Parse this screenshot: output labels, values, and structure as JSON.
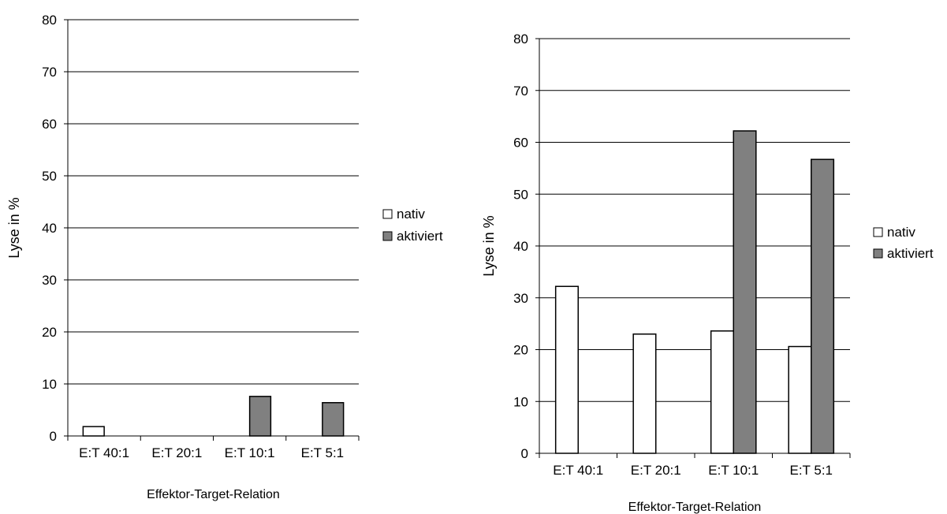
{
  "chart_data": [
    {
      "type": "bar",
      "title": "",
      "xlabel": "Effektor-Target-Relation",
      "ylabel": "Lyse in %",
      "ylim": [
        0,
        80
      ],
      "yticks": [
        0,
        10,
        20,
        30,
        40,
        50,
        60,
        70,
        80
      ],
      "grid": true,
      "legend_position": "right",
      "categories": [
        "E:T 40:1",
        "E:T 20:1",
        "E:T 10:1",
        "E:T 5:1"
      ],
      "series": [
        {
          "name": "nativ",
          "values": [
            1.8,
            0,
            0,
            0
          ],
          "color": "#ffffff"
        },
        {
          "name": "aktiviert",
          "values": [
            0,
            0,
            7.6,
            6.4
          ],
          "color": "#808080"
        }
      ]
    },
    {
      "type": "bar",
      "title": "",
      "xlabel": "Effektor-Target-Relation",
      "ylabel": "Lyse in %",
      "ylim": [
        0,
        80
      ],
      "yticks": [
        0,
        10,
        20,
        30,
        40,
        50,
        60,
        70,
        80
      ],
      "grid": true,
      "legend_position": "right",
      "categories": [
        "E:T 40:1",
        "E:T 20:1",
        "E:T 10:1",
        "E:T 5:1"
      ],
      "series": [
        {
          "name": "nativ",
          "values": [
            32.2,
            23.0,
            23.6,
            20.6
          ],
          "color": "#ffffff"
        },
        {
          "name": "aktiviert",
          "values": [
            0,
            0,
            62.2,
            56.7
          ],
          "color": "#808080"
        }
      ]
    }
  ]
}
